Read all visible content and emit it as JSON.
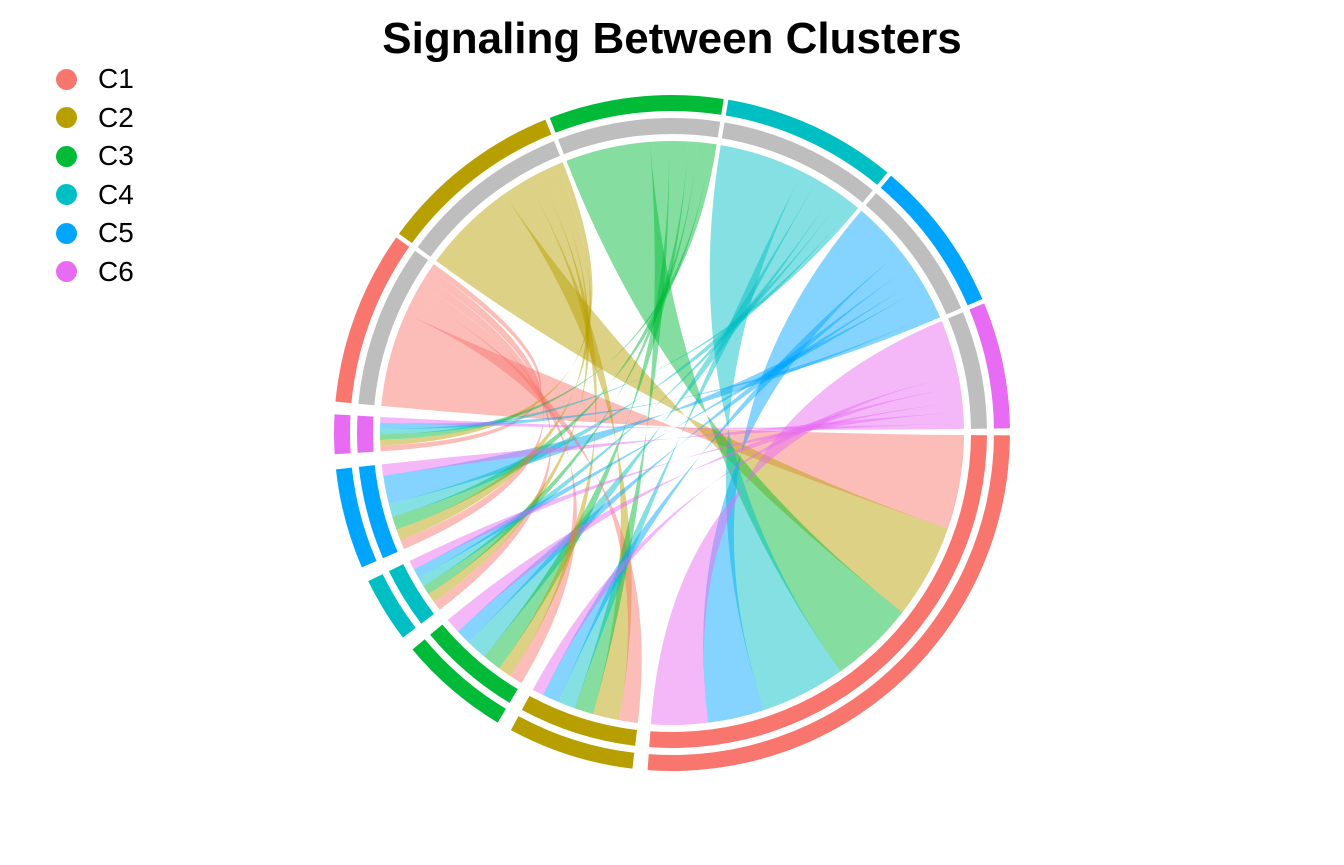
{
  "chart_data": {
    "type": "chord",
    "title": "Signaling Between Clusters",
    "legend_position": "top-left",
    "clusters": [
      {
        "name": "C1",
        "color": "#F8766D"
      },
      {
        "name": "C2",
        "color": "#B79F00"
      },
      {
        "name": "C3",
        "color": "#00BA38"
      },
      {
        "name": "C4",
        "color": "#00BFC4"
      },
      {
        "name": "C5",
        "color": "#00A5FF"
      },
      {
        "name": "C6",
        "color": "#E76BF3"
      }
    ],
    "matrix": [
      [
        5.0,
        1.0,
        0.7,
        0.5,
        0.5,
        0.3
      ],
      [
        5.0,
        1.4,
        0.7,
        0.5,
        0.6,
        0.3
      ],
      [
        4.5,
        1.0,
        1.0,
        0.5,
        0.7,
        0.3
      ],
      [
        4.5,
        0.9,
        1.1,
        0.5,
        0.7,
        0.3
      ],
      [
        3.0,
        0.9,
        0.8,
        0.5,
        1.5,
        0.3
      ],
      [
        3.0,
        0.6,
        0.8,
        0.5,
        0.6,
        0.3
      ]
    ]
  }
}
